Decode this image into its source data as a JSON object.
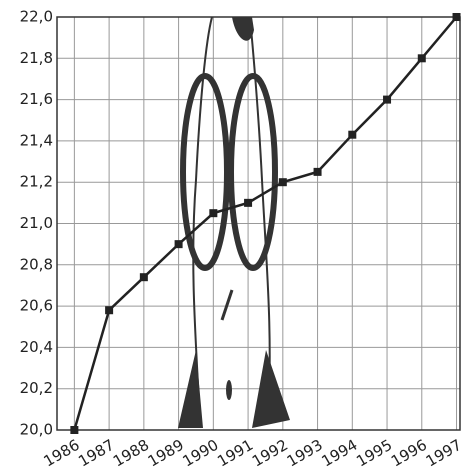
{
  "chart_data": {
    "type": "line",
    "x": [
      1986,
      1987,
      1988,
      1989,
      1990,
      1991,
      1992,
      1993,
      1994,
      1995,
      1996,
      1997
    ],
    "series": [
      {
        "color": "#222222",
        "values": [
          20.0,
          20.58,
          20.74,
          20.9,
          21.05,
          21.1,
          21.2,
          21.25,
          21.43,
          21.6,
          21.8,
          22.0
        ]
      }
    ],
    "xlim": [
      1985.5,
      1997.1
    ],
    "xticks": [
      1986,
      1987,
      1988,
      1989,
      1990,
      1991,
      1992,
      1993,
      1994,
      1995,
      1996,
      1997
    ],
    "ylim": [
      20,
      22
    ],
    "yticks": [
      {
        "value": 20,
        "label": "20,0"
      },
      {
        "value": 20.2,
        "label": "20,2"
      },
      {
        "value": 20.4,
        "label": "20,4"
      },
      {
        "value": 20.6,
        "label": "20,6"
      },
      {
        "value": 20.8,
        "label": "20,8"
      },
      {
        "value": 21,
        "label": "21,0"
      },
      {
        "value": 21.2,
        "label": "21,2"
      },
      {
        "value": 21.4,
        "label": "21,4"
      },
      {
        "value": 21.6,
        "label": "21,6"
      },
      {
        "value": 21.8,
        "label": "21,8"
      },
      {
        "value": 22,
        "label": "22,0"
      }
    ],
    "grid": true
  }
}
